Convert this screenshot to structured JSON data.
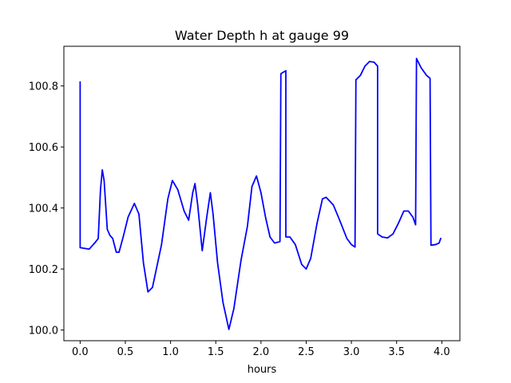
{
  "chart_data": {
    "type": "line",
    "title": "Water Depth h at gauge 99",
    "xlabel": "hours",
    "ylabel": "",
    "xlim": [
      -0.18,
      4.2
    ],
    "ylim": [
      99.965,
      100.93
    ],
    "xticks": [
      0.0,
      0.5,
      1.0,
      1.5,
      2.0,
      2.5,
      3.0,
      3.5,
      4.0
    ],
    "xtick_labels": [
      "0.0",
      "0.5",
      "1.0",
      "1.5",
      "2.0",
      "2.5",
      "3.0",
      "3.5",
      "4.0"
    ],
    "yticks": [
      100.0,
      100.2,
      100.4,
      100.6,
      100.8
    ],
    "ytick_labels": [
      "100.0",
      "100.2",
      "100.4",
      "100.6",
      "100.8"
    ],
    "grid": false,
    "color": "#0000ff",
    "series": [
      {
        "name": "",
        "points": [
          [
            0.0,
            100.815
          ],
          [
            0.0,
            100.27
          ],
          [
            0.1,
            100.265
          ],
          [
            0.16,
            100.285
          ],
          [
            0.2,
            100.3
          ],
          [
            0.225,
            100.46
          ],
          [
            0.245,
            100.525
          ],
          [
            0.265,
            100.49
          ],
          [
            0.3,
            100.33
          ],
          [
            0.33,
            100.31
          ],
          [
            0.36,
            100.3
          ],
          [
            0.4,
            100.255
          ],
          [
            0.43,
            100.255
          ],
          [
            0.48,
            100.31
          ],
          [
            0.53,
            100.37
          ],
          [
            0.6,
            100.415
          ],
          [
            0.65,
            100.38
          ],
          [
            0.7,
            100.22
          ],
          [
            0.75,
            100.125
          ],
          [
            0.8,
            100.14
          ],
          [
            0.9,
            100.28
          ],
          [
            0.97,
            100.43
          ],
          [
            1.02,
            100.49
          ],
          [
            1.08,
            100.46
          ],
          [
            1.15,
            100.39
          ],
          [
            1.2,
            100.36
          ],
          [
            1.245,
            100.45
          ],
          [
            1.27,
            100.48
          ],
          [
            1.3,
            100.41
          ],
          [
            1.35,
            100.26
          ],
          [
            1.4,
            100.37
          ],
          [
            1.44,
            100.45
          ],
          [
            1.47,
            100.38
          ],
          [
            1.52,
            100.22
          ],
          [
            1.58,
            100.09
          ],
          [
            1.645,
            100.002
          ],
          [
            1.7,
            100.07
          ],
          [
            1.78,
            100.23
          ],
          [
            1.85,
            100.34
          ],
          [
            1.9,
            100.47
          ],
          [
            1.95,
            100.505
          ],
          [
            2.0,
            100.45
          ],
          [
            2.05,
            100.37
          ],
          [
            2.1,
            100.305
          ],
          [
            2.15,
            100.285
          ],
          [
            2.21,
            100.29
          ],
          [
            2.22,
            100.84
          ],
          [
            2.275,
            100.85
          ],
          [
            2.275,
            100.305
          ],
          [
            2.32,
            100.305
          ],
          [
            2.38,
            100.28
          ],
          [
            2.45,
            100.215
          ],
          [
            2.5,
            100.2
          ],
          [
            2.55,
            100.235
          ],
          [
            2.62,
            100.35
          ],
          [
            2.68,
            100.43
          ],
          [
            2.72,
            100.435
          ],
          [
            2.8,
            100.41
          ],
          [
            2.87,
            100.36
          ],
          [
            2.95,
            100.3
          ],
          [
            3.0,
            100.28
          ],
          [
            3.04,
            100.272
          ],
          [
            3.05,
            100.82
          ],
          [
            3.1,
            100.835
          ],
          [
            3.15,
            100.865
          ],
          [
            3.2,
            100.88
          ],
          [
            3.25,
            100.878
          ],
          [
            3.29,
            100.865
          ],
          [
            3.29,
            100.315
          ],
          [
            3.34,
            100.305
          ],
          [
            3.4,
            100.302
          ],
          [
            3.46,
            100.315
          ],
          [
            3.52,
            100.35
          ],
          [
            3.58,
            100.39
          ],
          [
            3.63,
            100.39
          ],
          [
            3.68,
            100.37
          ],
          [
            3.71,
            100.345
          ],
          [
            3.72,
            100.89
          ],
          [
            3.77,
            100.86
          ],
          [
            3.83,
            100.835
          ],
          [
            3.87,
            100.825
          ],
          [
            3.88,
            100.278
          ],
          [
            3.93,
            100.28
          ],
          [
            3.97,
            100.285
          ],
          [
            3.99,
            100.302
          ]
        ]
      }
    ]
  }
}
